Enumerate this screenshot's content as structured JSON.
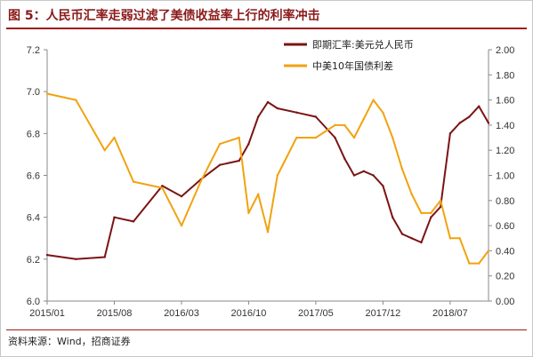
{
  "figure": {
    "title": "图 5：人民币汇率走弱过滤了美债收益率上行的利率冲击",
    "source": "资料来源：Wind，招商证券"
  },
  "colors": {
    "fx": "#7b1414",
    "spread": "#f2a20f",
    "title": "#8b1a1a"
  },
  "chart_data": {
    "type": "line",
    "title": "图 5：人民币汇率走弱过滤了美债收益率上行的利率冲击",
    "x_tick_labels": [
      "2015/01",
      "2015/08",
      "2016/03",
      "2016/10",
      "2017/05",
      "2017/12",
      "2018/07"
    ],
    "x": [
      "2015/01",
      "2015/04",
      "2015/07",
      "2015/08",
      "2015/10",
      "2016/01",
      "2016/03",
      "2016/05",
      "2016/07",
      "2016/09",
      "2016/10",
      "2016/11",
      "2016/12",
      "2017/01",
      "2017/03",
      "2017/05",
      "2017/07",
      "2017/08",
      "2017/09",
      "2017/10",
      "2017/11",
      "2017/12",
      "2018/01",
      "2018/02",
      "2018/03",
      "2018/04",
      "2018/05",
      "2018/06",
      "2018/07",
      "2018/08",
      "2018/09",
      "2018/10",
      "2018/11"
    ],
    "left_axis": {
      "ylim": [
        6.0,
        7.2
      ],
      "ticks": [
        "6.0",
        "6.2",
        "6.4",
        "6.6",
        "6.8",
        "7.0",
        "7.2"
      ]
    },
    "right_axis": {
      "ylim": [
        0.0,
        2.0
      ],
      "ticks": [
        "0.00",
        "0.20",
        "0.40",
        "0.60",
        "0.80",
        "1.00",
        "1.20",
        "1.40",
        "1.60",
        "1.80",
        "2.00"
      ]
    },
    "series": [
      {
        "name": "即期汇率:美元兑人民币",
        "axis": "left",
        "values": [
          6.22,
          6.2,
          6.21,
          6.4,
          6.38,
          6.55,
          6.5,
          6.58,
          6.65,
          6.67,
          6.75,
          6.88,
          6.95,
          6.92,
          6.9,
          6.88,
          6.78,
          6.68,
          6.6,
          6.62,
          6.6,
          6.55,
          6.4,
          6.32,
          6.3,
          6.28,
          6.4,
          6.45,
          6.8,
          6.85,
          6.88,
          6.93,
          6.85
        ]
      },
      {
        "name": "中美10年国债利差",
        "axis": "right",
        "values": [
          1.65,
          1.6,
          1.2,
          1.3,
          0.95,
          0.9,
          0.6,
          0.95,
          1.25,
          1.3,
          0.7,
          0.85,
          0.55,
          1.0,
          1.3,
          1.3,
          1.4,
          1.4,
          1.3,
          1.45,
          1.6,
          1.5,
          1.3,
          1.05,
          0.85,
          0.7,
          0.7,
          0.8,
          0.5,
          0.5,
          0.3,
          0.3,
          0.4
        ]
      }
    ],
    "legend": {
      "position": "top-right"
    },
    "grid": false
  }
}
